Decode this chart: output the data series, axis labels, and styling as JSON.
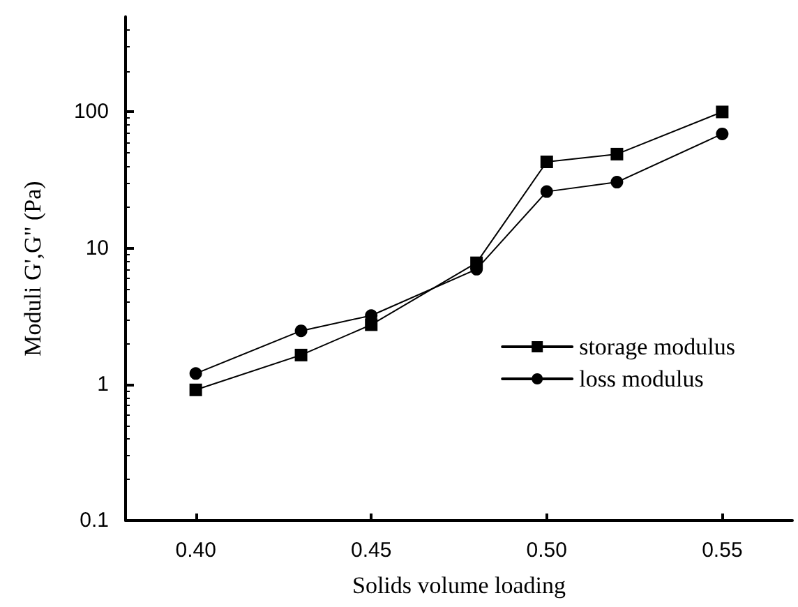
{
  "chart_data": {
    "type": "line",
    "xlabel": "Solids volume loading",
    "ylabel": "Moduli G',G\" (Pa)",
    "x": [
      0.4,
      0.43,
      0.45,
      0.48,
      0.5,
      0.52,
      0.55
    ],
    "series": [
      {
        "name": "storage modulus",
        "color": "#000000",
        "marker": "square",
        "values": [
          0.91,
          1.64,
          2.74,
          7.8,
          43,
          49,
          100
        ]
      },
      {
        "name": "loss modulus",
        "color": "#000000",
        "marker": "circle",
        "values": [
          1.2,
          2.47,
          3.2,
          7.0,
          26,
          30.5,
          69
        ]
      }
    ],
    "xlim": [
      0.38,
      0.57
    ],
    "xticks": [
      {
        "value": 0.4,
        "label": "0.40"
      },
      {
        "value": 0.45,
        "label": "0.45"
      },
      {
        "value": 0.5,
        "label": "0.50"
      },
      {
        "value": 0.55,
        "label": "0.55"
      }
    ],
    "ylim": [
      0.1,
      500
    ],
    "yticks": [
      0.1,
      1,
      10,
      100
    ],
    "log": "y",
    "grid": false,
    "legend": "right",
    "line_style": "solid"
  }
}
